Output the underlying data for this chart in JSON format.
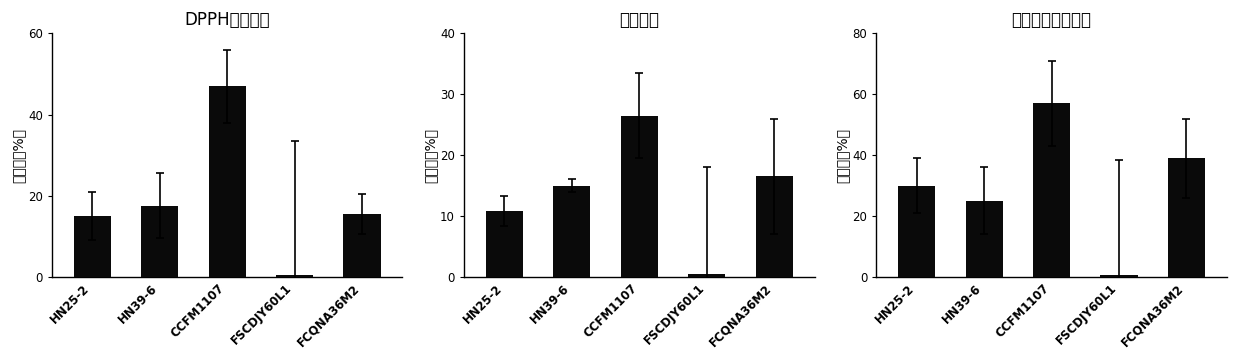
{
  "charts": [
    {
      "title": "DPPH清除能力",
      "ylabel": "消除率（%）",
      "ylim": [
        0,
        60
      ],
      "yticks": [
        0,
        20,
        40,
        60
      ],
      "categories": [
        "HN25-2",
        "HN39-6",
        "CCFM1107",
        "FSCDJY60L1",
        "FCQNA36M2"
      ],
      "values": [
        15,
        17.5,
        47,
        0.5,
        15.5
      ],
      "errors": [
        6,
        8,
        9,
        33,
        5
      ]
    },
    {
      "title": "还原能力",
      "ylabel": "消除率（%）",
      "ylim": [
        0,
        40
      ],
      "yticks": [
        0,
        10,
        20,
        30,
        40
      ],
      "categories": [
        "HN25-2",
        "HN39-6",
        "CCFM1107",
        "FSCDJY60L1",
        "FCQNA36M2"
      ],
      "values": [
        10.8,
        15.0,
        26.5,
        0.5,
        16.5
      ],
      "errors": [
        2.5,
        1.0,
        7.0,
        17.5,
        9.5
      ]
    },
    {
      "title": "羟自由基清除能力",
      "ylabel": "消除率（%）",
      "ylim": [
        0,
        80
      ],
      "yticks": [
        0,
        20,
        40,
        60,
        80
      ],
      "categories": [
        "HN25-2",
        "HN39-6",
        "CCFM1107",
        "FSCDJY60L1",
        "FCQNA36M2"
      ],
      "values": [
        30,
        25,
        57,
        0.5,
        39
      ],
      "errors": [
        9,
        11,
        14,
        38,
        13
      ]
    }
  ],
  "bar_color": "#0a0a0a",
  "bar_width": 0.55,
  "tick_label_fontsize": 8.5,
  "axis_label_fontsize": 10,
  "title_fontsize": 12,
  "background_color": "#ffffff",
  "error_capsize": 3,
  "error_linewidth": 1.2
}
